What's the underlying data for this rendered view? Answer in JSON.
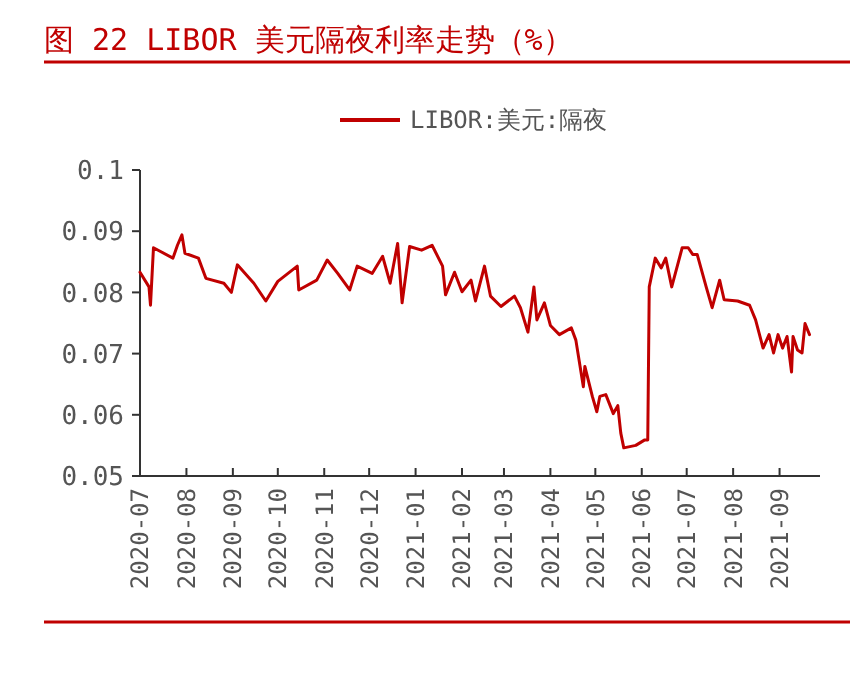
{
  "chart_data": {
    "type": "line",
    "title": "图 22  LIBOR 美元隔夜利率走势（%）",
    "series": [
      {
        "name": "LIBOR:美元:隔夜",
        "color": "#c00000",
        "x": [
          "2020-07-01",
          "2020-07-07",
          "2020-07-08",
          "2020-07-10",
          "2020-07-23",
          "2020-07-26",
          "2020-07-29",
          "2020-07-31",
          "2020-08-09",
          "2020-08-14",
          "2020-08-26",
          "2020-08-31",
          "2020-09-04",
          "2020-09-15",
          "2020-09-23",
          "2020-10-01",
          "2020-10-14",
          "2020-10-15",
          "2020-10-27",
          "2020-11-03",
          "2020-11-10",
          "2020-11-18",
          "2020-11-23",
          "2020-12-03",
          "2020-12-10",
          "2020-12-15",
          "2020-12-20",
          "2020-12-23",
          "2020-12-28",
          "2021-01-05",
          "2021-01-12",
          "2021-01-19",
          "2021-01-21",
          "2021-01-27",
          "2021-02-01",
          "2021-02-07",
          "2021-02-10",
          "2021-02-16",
          "2021-02-20",
          "2021-02-27",
          "2021-03-08",
          "2021-03-12",
          "2021-03-17",
          "2021-03-21",
          "2021-03-23",
          "2021-03-28",
          "2021-04-01",
          "2021-04-07",
          "2021-04-15",
          "2021-04-18",
          "2021-04-23",
          "2021-04-24",
          "2021-04-29",
          "2021-05-02",
          "2021-05-04",
          "2021-05-08",
          "2021-05-13",
          "2021-05-16",
          "2021-05-18",
          "2021-05-20",
          "2021-05-28",
          "2021-06-03",
          "2021-06-05",
          "2021-06-06",
          "2021-06-10",
          "2021-06-14",
          "2021-06-17",
          "2021-06-21",
          "2021-06-28",
          "2021-07-02",
          "2021-07-05",
          "2021-07-08",
          "2021-07-14",
          "2021-07-18",
          "2021-07-23",
          "2021-07-26",
          "2021-08-04",
          "2021-08-12",
          "2021-08-16",
          "2021-08-21",
          "2021-08-25",
          "2021-08-28",
          "2021-08-31",
          "2021-09-03",
          "2021-09-06",
          "2021-09-09",
          "2021-09-10",
          "2021-09-13",
          "2021-09-16",
          "2021-09-18",
          "2021-09-21"
        ],
        "values": [
          0.0833,
          0.0809,
          0.0779,
          0.0873,
          0.0856,
          0.0877,
          0.0894,
          0.0864,
          0.0856,
          0.0823,
          0.0815,
          0.08,
          0.0845,
          0.0815,
          0.0786,
          0.0818,
          0.0843,
          0.0804,
          0.082,
          0.0853,
          0.0831,
          0.0804,
          0.0843,
          0.0831,
          0.0859,
          0.0815,
          0.088,
          0.0783,
          0.0875,
          0.0869,
          0.0877,
          0.0843,
          0.0796,
          0.0833,
          0.0801,
          0.082,
          0.0786,
          0.0843,
          0.0794,
          0.0777,
          0.0794,
          0.0775,
          0.0735,
          0.0809,
          0.0755,
          0.0783,
          0.0746,
          0.0731,
          0.0742,
          0.0722,
          0.0646,
          0.0679,
          0.063,
          0.0605,
          0.063,
          0.0633,
          0.0602,
          0.0615,
          0.057,
          0.0546,
          0.055,
          0.0559,
          0.0559,
          0.0809,
          0.0856,
          0.084,
          0.0856,
          0.0809,
          0.0873,
          0.0873,
          0.0862,
          0.0862,
          0.0809,
          0.0775,
          0.082,
          0.0788,
          0.0786,
          0.0779,
          0.0755,
          0.0709,
          0.0731,
          0.0701,
          0.0731,
          0.0709,
          0.0728,
          0.067,
          0.0728,
          0.0706,
          0.0701,
          0.0749,
          0.0731
        ]
      }
    ],
    "xlim": [
      "2020-07-01",
      "2021-09-28"
    ],
    "xticks": [
      "2020-07",
      "2020-08",
      "2020-09",
      "2020-10",
      "2020-11",
      "2020-12",
      "2021-01",
      "2021-02",
      "2021-03",
      "2021-04",
      "2021-05",
      "2021-06",
      "2021-07",
      "2021-08",
      "2021-09"
    ],
    "ylim": [
      0.05,
      0.1
    ],
    "yticks": [
      {
        "value": 0.1,
        "label": "0.1"
      },
      {
        "value": 0.09,
        "label": "0.09"
      },
      {
        "value": 0.08,
        "label": "0.08"
      },
      {
        "value": 0.07,
        "label": "0.07"
      },
      {
        "value": 0.06,
        "label": "0.06"
      },
      {
        "value": 0.05,
        "label": "0.05"
      }
    ],
    "grid": false,
    "legend": "top",
    "marker": "none",
    "line_style": "solid"
  }
}
